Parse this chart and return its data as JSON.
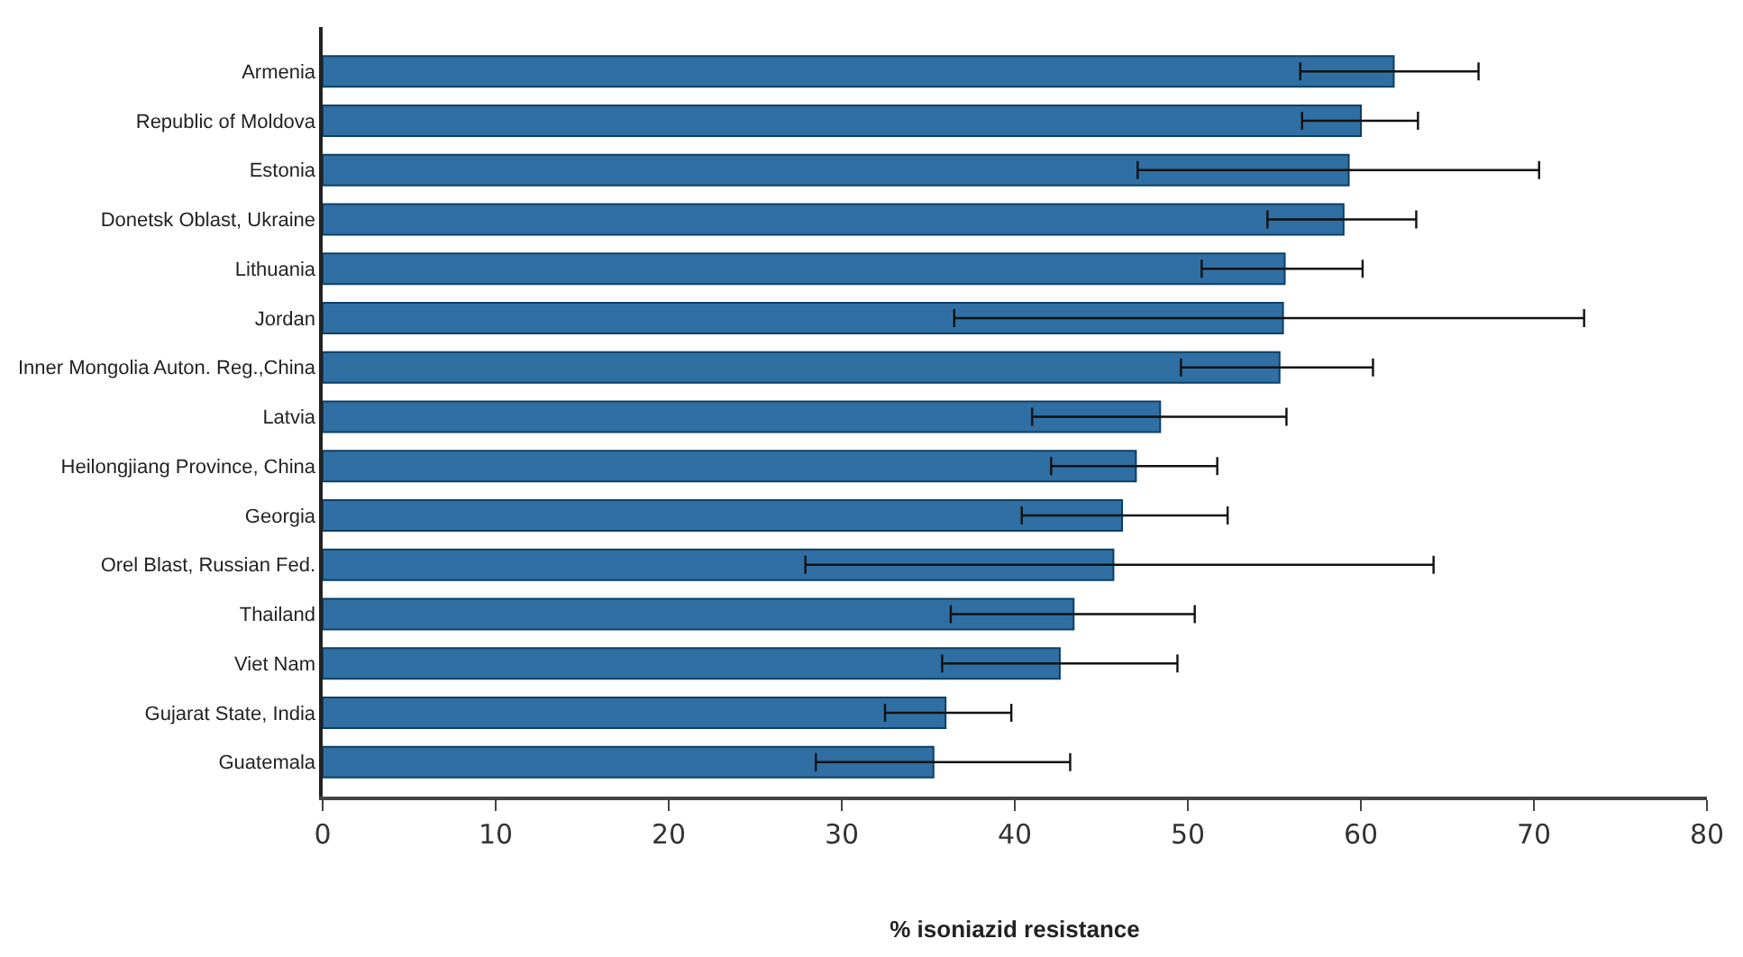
{
  "chart_data": {
    "type": "bar",
    "orientation": "horizontal",
    "xlabel": "% isoniazid resistance",
    "categories": [
      "Armenia",
      "Republic of Moldova",
      "Estonia",
      "Donetsk Oblast, Ukraine",
      "Lithuania",
      "Jordan",
      "Inner Mongolia Auton. Reg.,China",
      "Latvia",
      "Heilongjiang Province, China",
      "Georgia",
      "Orel Blast, Russian Fed.",
      "Thailand",
      "Viet Nam",
      "Gujarat State, India",
      "Guatemala"
    ],
    "values": [
      61.9,
      60.0,
      59.3,
      59.0,
      55.6,
      55.5,
      55.3,
      48.4,
      47.0,
      46.2,
      45.7,
      43.4,
      42.6,
      36.0,
      35.3
    ],
    "errors": [
      [
        56.5,
        66.8
      ],
      [
        56.6,
        63.3
      ],
      [
        47.1,
        70.3
      ],
      [
        54.6,
        63.2
      ],
      [
        50.8,
        60.1
      ],
      [
        36.5,
        72.9
      ],
      [
        49.6,
        60.7
      ],
      [
        41.0,
        55.7
      ],
      [
        42.1,
        51.7
      ],
      [
        40.4,
        52.3
      ],
      [
        27.9,
        64.2
      ],
      [
        36.3,
        50.4
      ],
      [
        35.8,
        49.4
      ],
      [
        32.5,
        39.8
      ],
      [
        28.5,
        43.2
      ]
    ],
    "color": "#2f6fa3",
    "xlim": [
      0,
      80
    ],
    "xticks": [
      0,
      10,
      20,
      30,
      40,
      50,
      60,
      70,
      80
    ]
  }
}
